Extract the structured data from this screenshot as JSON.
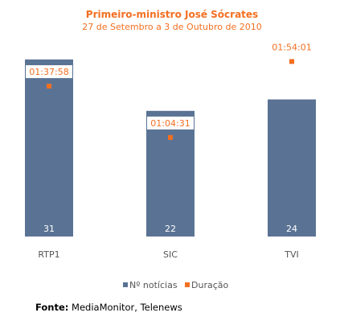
{
  "chart_data": {
    "type": "bar",
    "title": "Primeiro-ministro José Sócrates",
    "subtitle": "27 de Setembro a 3 de Outubro de 2010",
    "categories": [
      "RTP1",
      "SIC",
      "TVI"
    ],
    "series": [
      {
        "name": "Nº notícias",
        "type": "bar",
        "values": [
          31,
          22,
          24
        ],
        "color": "#5a7394"
      },
      {
        "name": "Duração",
        "type": "scatter",
        "values": [
          "01:37:58",
          "01:04:31",
          "01:54:01"
        ],
        "seconds": [
          5878,
          3871,
          6841
        ],
        "color": "#f36f21"
      }
    ],
    "legend_position": "bottom",
    "grid": false
  },
  "source": {
    "label": "Fonte:",
    "text": "MediaMonitor, Telenews"
  },
  "colors": {
    "title": "#f36f21",
    "bar": "#5a7394",
    "marker": "#f36f21"
  }
}
